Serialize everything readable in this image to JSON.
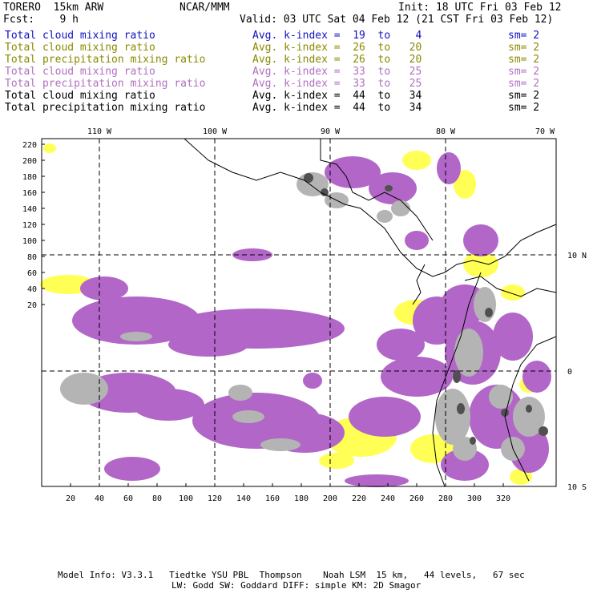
{
  "header": {
    "model": "TORERO  15km ARW",
    "org": "NCAR/MMM",
    "init": "Init: 18 UTC Fri 03 Feb 12",
    "fcst": "Fcst:    9 h",
    "valid": "Valid: 03 UTC Sat 04 Feb 12 (21 CST Fri 03 Feb 12)"
  },
  "legend": [
    {
      "name": "Total cloud mixing ratio",
      "kindex": "Avg. k-index =  19  to    4",
      "sm": "sm= 2",
      "color": "#1010c0"
    },
    {
      "name": "Total cloud mixing ratio",
      "kindex": "Avg. k-index =  26  to   20",
      "sm": "sm= 2",
      "color": "#8a8a00"
    },
    {
      "name": "Total precipitation mixing ratio",
      "kindex": "Avg. k-index =  26  to   20",
      "sm": "sm= 2",
      "color": "#8a8a00"
    },
    {
      "name": "Total cloud mixing ratio",
      "kindex": "Avg. k-index =  33  to   25",
      "sm": "sm= 2",
      "color": "#b070c0"
    },
    {
      "name": "Total precipitation mixing ratio",
      "kindex": "Avg. k-index =  33  to   25",
      "sm": "sm= 2",
      "color": "#b070c0"
    },
    {
      "name": "Total cloud mixing ratio",
      "kindex": "Avg. k-index =  44  to   34",
      "sm": "sm= 2",
      "color": "#000000"
    },
    {
      "name": "Total precipitation mixing ratio",
      "kindex": "Avg. k-index =  44  to   34",
      "sm": "sm= 2",
      "color": "#000000"
    }
  ],
  "map": {
    "lon_labels": [
      "110 W",
      "100 W",
      "90 W",
      "80 W",
      "70 W"
    ],
    "lat_labels": [
      "10 N",
      "0",
      "10 S"
    ],
    "y_ticks": [
      "220",
      "200",
      "180",
      "160",
      "140",
      "120",
      "100",
      "80",
      "60",
      "40",
      "20"
    ],
    "x_ticks": [
      "20",
      "40",
      "60",
      "80",
      "100",
      "120",
      "140",
      "160",
      "180",
      "200",
      "220",
      "240",
      "260",
      "280",
      "300",
      "320"
    ],
    "colors": {
      "yellow": "#ffff55",
      "purple": "#b266c8",
      "gray": "#b4b4b4",
      "dark": "#505050"
    }
  },
  "footer": {
    "line1": "Model Info: V3.3.1   Tiedtke YSU PBL  Thompson    Noah LSM  15 km,   44 levels,   67 sec",
    "line2": "LW: Godd SW: Goddard DIFF: simple KM: 2D Smagor"
  }
}
